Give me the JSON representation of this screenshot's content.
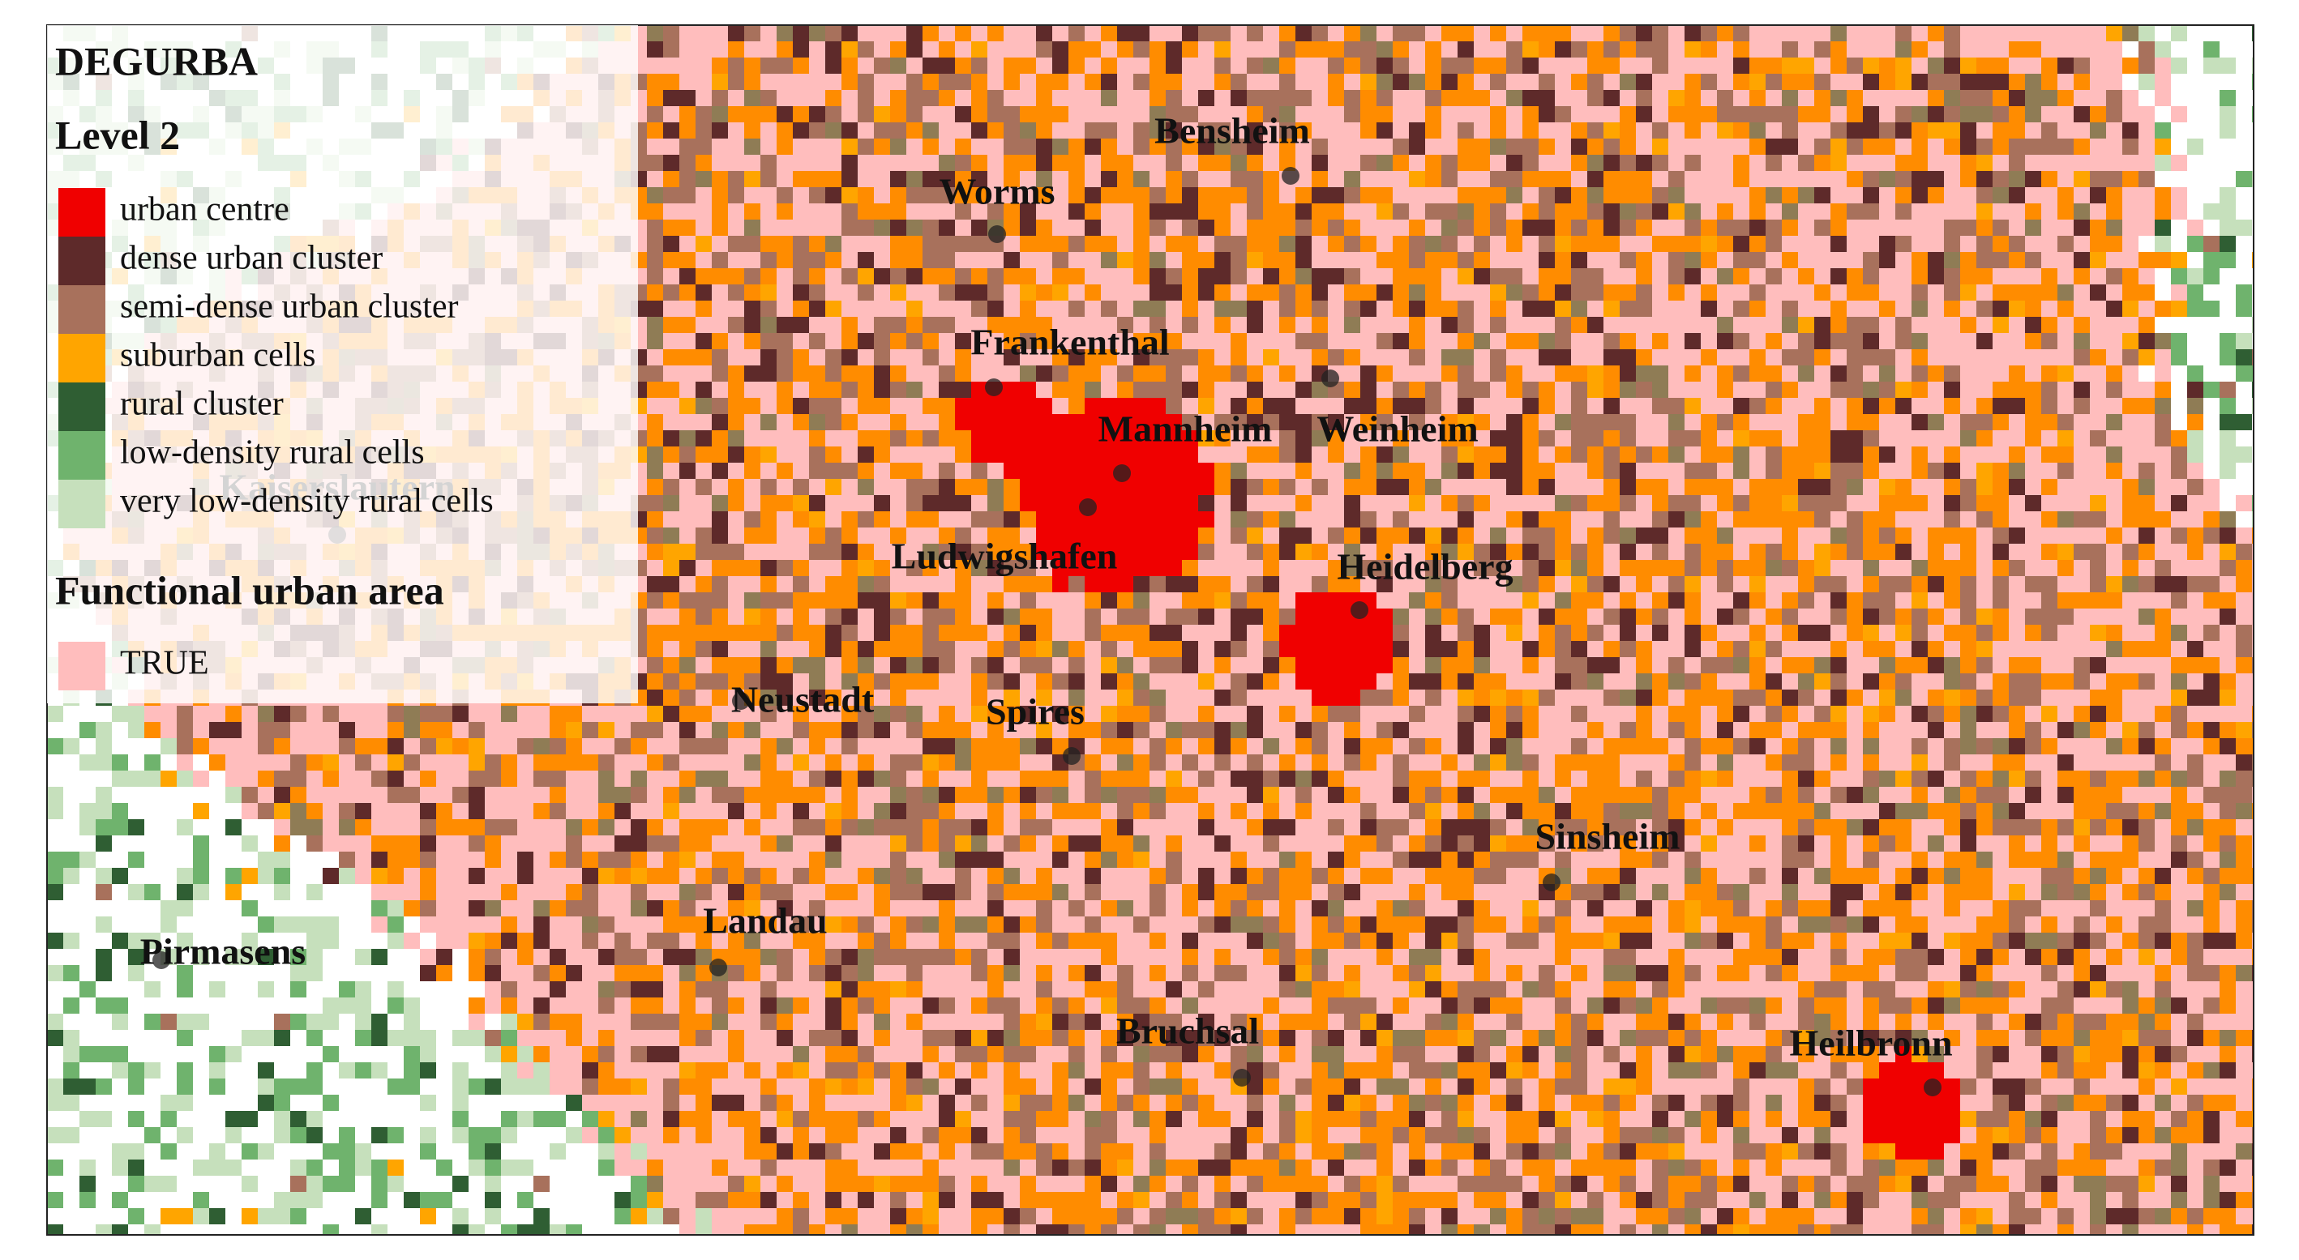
{
  "title": "DEGURBA",
  "subtitle": "Level 2",
  "legend": {
    "items": [
      {
        "label": "urban centre",
        "color": "#f00000"
      },
      {
        "label": "dense urban cluster",
        "color": "#5e2a2a"
      },
      {
        "label": "semi-dense urban cluster",
        "color": "#a8715c"
      },
      {
        "label": "suburban cells",
        "color": "#ffa500"
      },
      {
        "label": "rural cluster",
        "color": "#2f5e33"
      },
      {
        "label": "low-density rural cells",
        "color": "#6fb36d"
      },
      {
        "label": "very low-density rural cells",
        "color": "#c6e0bc"
      }
    ]
  },
  "fua": {
    "title": "Functional urban area",
    "items": [
      {
        "label": "TRUE",
        "color": "#ffbdbd"
      }
    ]
  },
  "cities": [
    {
      "name": "Bensheim"
    },
    {
      "name": "Worms"
    },
    {
      "name": "Frankenthal"
    },
    {
      "name": "Mannheim"
    },
    {
      "name": "Weinheim"
    },
    {
      "name": "Ludwigshafen"
    },
    {
      "name": "Heidelberg"
    },
    {
      "name": "Neustadt"
    },
    {
      "name": "Spires"
    },
    {
      "name": "Sinsheim"
    },
    {
      "name": "Landau"
    },
    {
      "name": "Pirmasens"
    },
    {
      "name": "Bruchsal"
    },
    {
      "name": "Heilbronn"
    },
    {
      "name": "Kaiserslautern"
    }
  ]
}
